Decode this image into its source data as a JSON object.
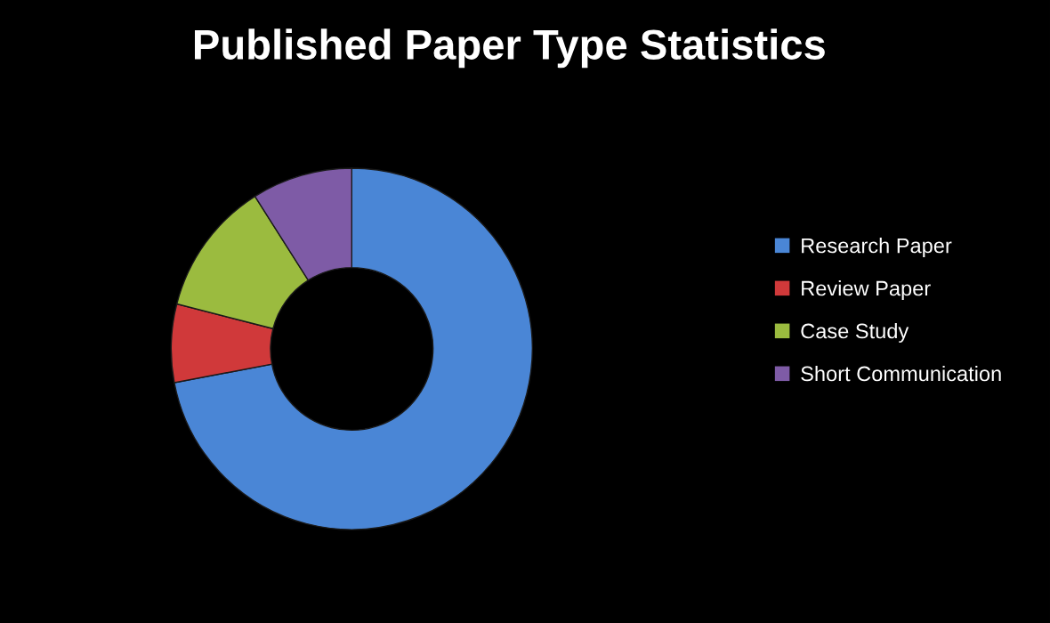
{
  "chart_data": {
    "type": "donut",
    "title": "Published Paper Type Statistics",
    "categories": [
      "Research Paper",
      "Review Paper",
      "Case Study",
      "Short Communication"
    ],
    "values": [
      72,
      7,
      12,
      9
    ],
    "colors": [
      "#4a86d6",
      "#d0393a",
      "#9bbb3f",
      "#7e5ba6"
    ],
    "legend": "right"
  }
}
